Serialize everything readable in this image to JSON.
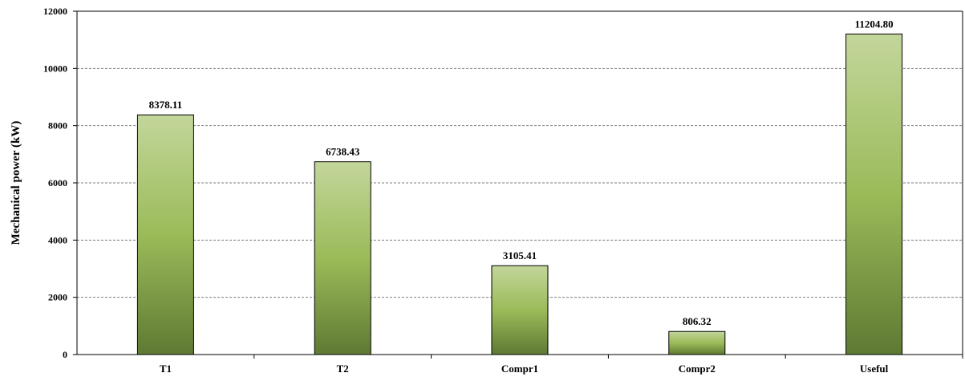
{
  "chart_data": {
    "type": "bar",
    "title": "",
    "xlabel": "",
    "ylabel": "Mechanical power (kW)",
    "categories": [
      "T1",
      "T2",
      "Compr1",
      "Compr2",
      "Useful"
    ],
    "values": [
      8378.11,
      6738.43,
      3105.41,
      806.32,
      11204.8
    ],
    "value_labels": [
      "8378.11",
      "6738.43",
      "3105.41",
      "806.32",
      "11204.80"
    ],
    "ylim": [
      0,
      12000
    ],
    "yticks": [
      0,
      2000,
      4000,
      6000,
      8000,
      10000,
      12000
    ],
    "ytick_labels": [
      "0",
      "2000",
      "4000",
      "6000",
      "8000",
      "10000",
      "12000"
    ],
    "grid": "horizontal dashed",
    "legend": "none",
    "colors": {
      "bar_top": "#c3d69b",
      "bar_mid": "#9bbb59",
      "bar_bottom": "#5e7a33",
      "bar_stroke": "#000000",
      "grid": "#7f7f7f",
      "axis": "#000000"
    }
  }
}
